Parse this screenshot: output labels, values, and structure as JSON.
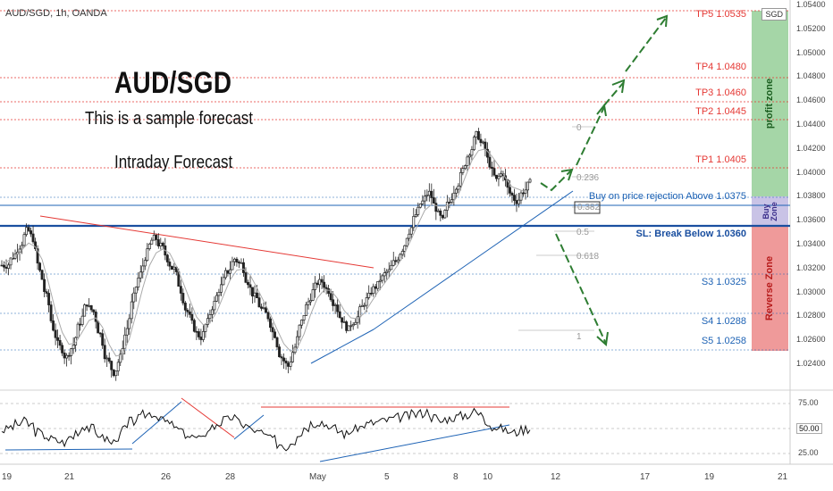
{
  "header": {
    "symbol_line": "AUD/SGD, 1h, OANDA",
    "currency_badge": "SGD"
  },
  "annotations": {
    "title": "AUD/SGD",
    "subtitle": "This is a sample forecast",
    "note": "Intraday Forecast"
  },
  "levels": {
    "tp5": {
      "label": "TP5 1.0535",
      "price": 1.0535
    },
    "tp4": {
      "label": "TP4 1.0480",
      "price": 1.048
    },
    "tp3": {
      "label": "TP3 1.0460",
      "price": 1.046
    },
    "tp2": {
      "label": "TP2 1.0445",
      "price": 1.0445
    },
    "tp1": {
      "label": "TP1 1.0405",
      "price": 1.0405
    },
    "buy": {
      "label": "Buy on price rejection Above 1.0375",
      "price": 1.0375
    },
    "sl": {
      "label": "SL: Break Below 1.0360",
      "price": 1.036
    },
    "s3": {
      "label": "S3 1.0325",
      "price": 1.0325
    },
    "s4": {
      "label": "S4 1.0288",
      "price": 1.0288
    },
    "s5": {
      "label": "S5 1.0258",
      "price": 1.0258
    }
  },
  "fib": {
    "f0": "0",
    "f236": "0.236",
    "f382": "0.382",
    "f5": "0.5",
    "f618": "0.618",
    "f1": "1"
  },
  "zones": {
    "profit": "profit zone",
    "buy": "Buy Zone",
    "reverse": "Reverse Zone"
  },
  "colors": {
    "profit_zone": "#a5d6a7",
    "buy_zone": "#c9c3e6",
    "reverse_zone": "#ef9a9a",
    "tp_line": "#e53935",
    "support_line": "#1e63b5",
    "arrow": "#2e7d32"
  },
  "price_axis": {
    "ticks": [
      "1.05400",
      "1.05200",
      "1.05000",
      "1.04800",
      "1.04600",
      "1.04400",
      "1.04200",
      "1.04000",
      "1.03800",
      "1.03600",
      "1.03400",
      "1.03200",
      "1.03000",
      "1.02800",
      "1.02600",
      "1.02400"
    ]
  },
  "rsi_axis": {
    "ticks": [
      "75.00",
      "50.00",
      "25.00"
    ],
    "current": "50.00"
  },
  "time_axis": {
    "ticks": [
      "19",
      "21",
      "26",
      "28",
      "May",
      "5",
      "8",
      "10",
      "12",
      "17",
      "19",
      "21"
    ]
  },
  "chart_data": {
    "type": "candlestick",
    "symbol": "AUD/SGD",
    "timeframe": "1h",
    "price_range": [
      1.0236,
      1.0545
    ],
    "close_series": [
      1.0335,
      1.0342,
      1.035,
      1.0362,
      1.0356,
      1.033,
      1.031,
      1.0285,
      1.027,
      1.0262,
      1.0272,
      1.029,
      1.0305,
      1.0298,
      1.028,
      1.026,
      1.025,
      1.0262,
      1.0285,
      1.031,
      1.0328,
      1.0345,
      1.0356,
      1.035,
      1.034,
      1.0332,
      1.0315,
      1.0298,
      1.0285,
      1.0278,
      1.029,
      1.0305,
      1.0318,
      1.033,
      1.034,
      1.0336,
      1.0322,
      1.031,
      1.03,
      1.0294,
      1.028,
      1.0262,
      1.0255,
      1.027,
      1.029,
      1.0306,
      1.0318,
      1.0322,
      1.0315,
      1.0305,
      1.0292,
      1.0284,
      1.0292,
      1.0302,
      1.031,
      1.0318,
      1.0325,
      1.033,
      1.0338,
      1.0348,
      1.0362,
      1.0375,
      1.0385,
      1.0392,
      1.038,
      1.037,
      1.0385,
      1.0398,
      1.041,
      1.0425,
      1.0438,
      1.043,
      1.0415,
      1.0402,
      1.0408,
      1.0392,
      1.0386,
      1.0394,
      1.04
    ],
    "rsi_series": [
      48,
      52,
      56,
      60,
      55,
      45,
      40,
      35,
      32,
      30,
      38,
      46,
      54,
      50,
      42,
      36,
      30,
      38,
      50,
      60,
      64,
      70,
      72,
      68,
      60,
      55,
      48,
      42,
      38,
      34,
      44,
      52,
      58,
      62,
      66,
      60,
      54,
      48,
      44,
      40,
      34,
      28,
      24,
      32,
      44,
      52,
      58,
      60,
      56,
      50,
      46,
      42,
      48,
      52,
      56,
      58,
      60,
      62,
      64,
      66,
      68,
      70,
      72,
      74,
      66,
      60,
      64,
      66,
      68,
      70,
      74,
      70,
      60,
      52,
      50,
      46,
      44,
      48,
      50
    ],
    "rsi_levels": [
      75,
      50,
      25
    ]
  }
}
